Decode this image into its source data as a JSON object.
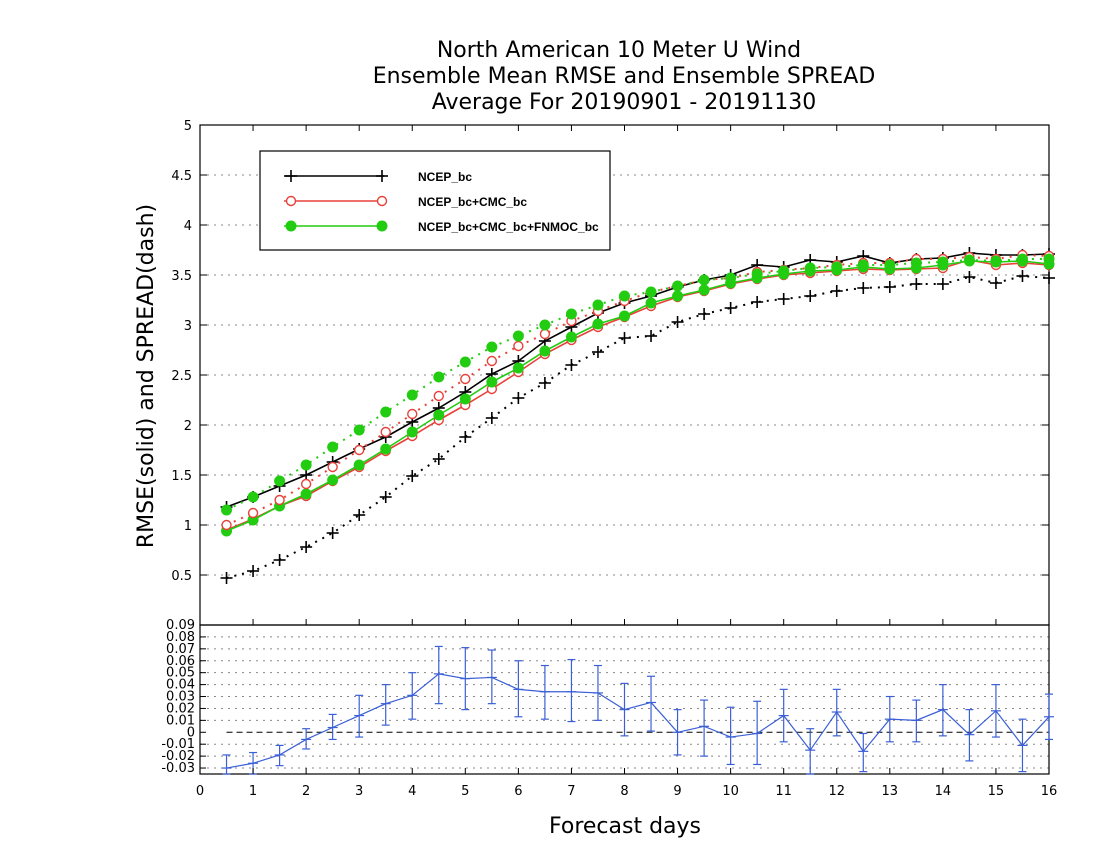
{
  "chart_data": {
    "type": "line",
    "title": "North American 10 Meter U Wind",
    "subtitle": "Ensemble Mean RMSE and Ensemble SPREAD",
    "subtitle2": "Average For 20190901 - 20191130",
    "ylabel": "RMSE(solid) and SPREAD(dash)",
    "xlabel": "Forecast days",
    "xlim": [
      0,
      16
    ],
    "ylim": [
      0,
      5
    ],
    "xticks": [
      "0",
      "1",
      "2",
      "3",
      "4",
      "5",
      "6",
      "7",
      "8",
      "9",
      "10",
      "11",
      "12",
      "13",
      "14",
      "15",
      "16"
    ],
    "yticks": [
      "0.5",
      "1",
      "1.5",
      "2",
      "2.5",
      "3",
      "3.5",
      "4",
      "4.5",
      "5"
    ],
    "grid": true,
    "legend_position": "top-left",
    "colors": {
      "ncep": "#000000",
      "ncep_cmc": "#e8413a",
      "all3": "#22cc11",
      "diff": "#3b5fd6"
    },
    "x": [
      0.5,
      1,
      1.5,
      2,
      2.5,
      3,
      3.5,
      4,
      4.5,
      5,
      5.5,
      6,
      6.5,
      7,
      7.5,
      8,
      8.5,
      9,
      9.5,
      10,
      10.5,
      11,
      11.5,
      12,
      12.5,
      13,
      13.5,
      14,
      14.5,
      15,
      15.5,
      16
    ],
    "series": [
      {
        "name": "NCEP_bc",
        "style": "solid",
        "marker": "plus",
        "color": "#000000",
        "values": [
          1.18,
          1.28,
          1.39,
          1.5,
          1.63,
          1.76,
          1.88,
          2.03,
          2.17,
          2.33,
          2.51,
          2.64,
          2.84,
          2.98,
          3.12,
          3.22,
          3.29,
          3.38,
          3.45,
          3.5,
          3.6,
          3.58,
          3.65,
          3.63,
          3.69,
          3.62,
          3.66,
          3.67,
          3.72,
          3.7,
          3.7,
          3.71
        ]
      },
      {
        "name": "NCEP_bc+CMC_bc",
        "style": "solid",
        "marker": "circle-open",
        "color": "#e8413a",
        "values": [
          0.95,
          1.06,
          1.19,
          1.29,
          1.44,
          1.58,
          1.74,
          1.89,
          2.05,
          2.2,
          2.36,
          2.53,
          2.71,
          2.85,
          2.98,
          3.08,
          3.19,
          3.28,
          3.34,
          3.41,
          3.46,
          3.5,
          3.52,
          3.54,
          3.56,
          3.55,
          3.56,
          3.57,
          3.65,
          3.6,
          3.62,
          3.6
        ]
      },
      {
        "name": "NCEP_bc+CMC_bc+FNMOC_bc",
        "style": "solid",
        "marker": "circle-filled",
        "color": "#22cc11",
        "values": [
          0.94,
          1.05,
          1.19,
          1.31,
          1.45,
          1.6,
          1.76,
          1.93,
          2.1,
          2.26,
          2.43,
          2.57,
          2.74,
          2.88,
          3.01,
          3.09,
          3.22,
          3.29,
          3.35,
          3.42,
          3.47,
          3.51,
          3.54,
          3.55,
          3.58,
          3.56,
          3.57,
          3.6,
          3.64,
          3.63,
          3.64,
          3.61
        ]
      },
      {
        "name": "NCEP_bc spread",
        "style": "dotted",
        "marker": "plus",
        "color": "#000000",
        "values": [
          0.47,
          0.54,
          0.65,
          0.78,
          0.92,
          1.1,
          1.28,
          1.49,
          1.66,
          1.88,
          2.07,
          2.27,
          2.42,
          2.6,
          2.73,
          2.87,
          2.89,
          3.03,
          3.11,
          3.17,
          3.23,
          3.26,
          3.29,
          3.34,
          3.37,
          3.38,
          3.41,
          3.41,
          3.48,
          3.42,
          3.49,
          3.47
        ]
      },
      {
        "name": "NCEP_bc+CMC_bc spread",
        "style": "dotted",
        "marker": "circle-open",
        "color": "#e8413a",
        "values": [
          1.0,
          1.12,
          1.25,
          1.41,
          1.58,
          1.75,
          1.93,
          2.11,
          2.29,
          2.46,
          2.64,
          2.79,
          2.91,
          3.04,
          3.14,
          3.24,
          3.33,
          3.39,
          3.45,
          3.47,
          3.53,
          3.55,
          3.57,
          3.6,
          3.62,
          3.62,
          3.66,
          3.66,
          3.68,
          3.66,
          3.7,
          3.69
        ]
      },
      {
        "name": "NCEP_bc+CMC_bc+FNMOC_bc spread",
        "style": "dotted",
        "marker": "circle-filled",
        "color": "#22cc11",
        "values": [
          1.15,
          1.28,
          1.44,
          1.6,
          1.78,
          1.95,
          2.13,
          2.3,
          2.48,
          2.63,
          2.78,
          2.89,
          3.0,
          3.11,
          3.2,
          3.29,
          3.33,
          3.39,
          3.45,
          3.47,
          3.51,
          3.54,
          3.57,
          3.58,
          3.6,
          3.6,
          3.62,
          3.63,
          3.65,
          3.64,
          3.66,
          3.66
        ]
      }
    ],
    "legend": [
      "NCEP_bc",
      "NCEP_bc+CMC_bc",
      "NCEP_bc+CMC_bc+FNMOC_bc"
    ],
    "difference_panel": {
      "ylim": [
        -0.035,
        0.09
      ],
      "yticks": [
        "-0.03",
        "-0.02",
        "-0.01",
        "0",
        "0.01",
        "0.02",
        "0.03",
        "0.04",
        "0.05",
        "0.06",
        "0.07",
        "0.08",
        "0.09"
      ],
      "values": [
        -0.03,
        -0.026,
        -0.019,
        -0.006,
        0.004,
        0.014,
        0.024,
        0.031,
        0.049,
        0.045,
        0.046,
        0.036,
        0.034,
        0.034,
        0.033,
        0.019,
        0.025,
        0.0,
        0.005,
        -0.004,
        -0.001,
        0.014,
        -0.015,
        0.017,
        -0.016,
        0.011,
        0.01,
        0.019,
        -0.002,
        0.018,
        -0.011,
        0.013
      ],
      "error_low": [
        -0.04,
        -0.035,
        -0.028,
        -0.014,
        -0.006,
        -0.004,
        0.006,
        0.011,
        0.024,
        0.019,
        0.024,
        0.013,
        0.011,
        0.009,
        0.01,
        -0.003,
        0.001,
        -0.019,
        -0.02,
        -0.027,
        -0.027,
        -0.008,
        -0.036,
        -0.003,
        -0.033,
        -0.008,
        -0.008,
        -0.003,
        -0.024,
        -0.004,
        -0.033,
        -0.006
      ],
      "error_high": [
        -0.019,
        -0.017,
        -0.011,
        0.003,
        0.015,
        0.031,
        0.04,
        0.05,
        0.072,
        0.071,
        0.069,
        0.06,
        0.056,
        0.061,
        0.056,
        0.041,
        0.047,
        0.019,
        0.027,
        0.021,
        0.026,
        0.036,
        0.003,
        0.036,
        -0.001,
        0.03,
        0.027,
        0.04,
        0.019,
        0.04,
        0.011,
        0.032
      ]
    }
  }
}
